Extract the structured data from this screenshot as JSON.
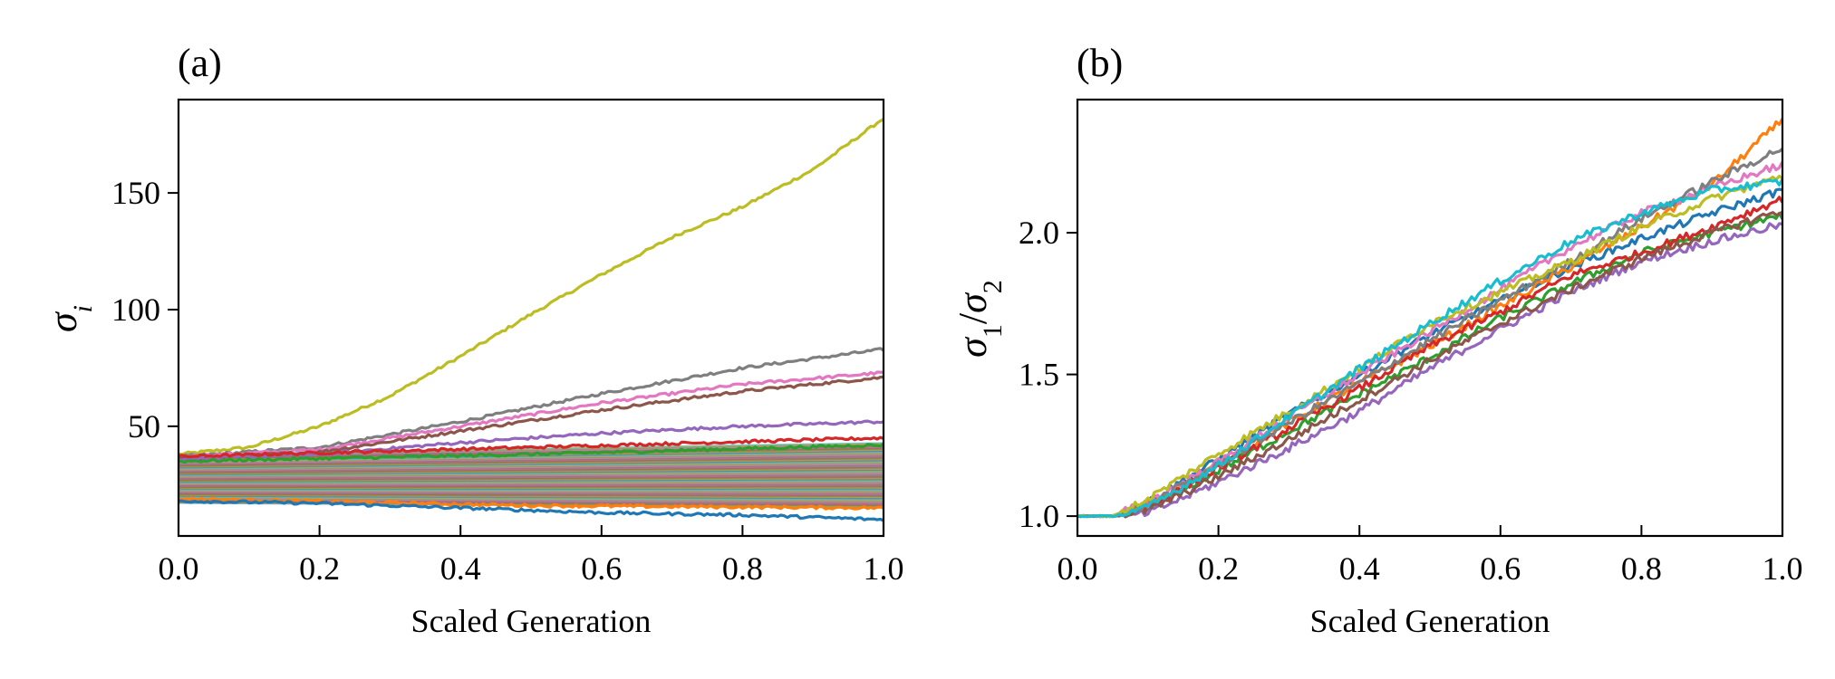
{
  "chart_data": [
    {
      "type": "line",
      "panel_label": "(a)",
      "xlabel": "Scaled Generation",
      "ylabel": {
        "symbol": "σ",
        "subscript": "i"
      },
      "xlim": [
        0.0,
        1.0
      ],
      "ylim": [
        3,
        190
      ],
      "x_ticks": [
        0.0,
        0.2,
        0.4,
        0.6,
        0.8,
        1.0
      ],
      "x_tick_labels": [
        "0.0",
        "0.2",
        "0.4",
        "0.6",
        "0.8",
        "1.0"
      ],
      "y_ticks": [
        50,
        100,
        150
      ],
      "y_tick_labels": [
        "50",
        "100",
        "150"
      ],
      "grid": false,
      "band": {
        "description": "many overlapping series",
        "color": "#9a8f80",
        "y_start": [
          17,
          38
        ],
        "y_end": [
          15,
          43
        ]
      },
      "series": [
        {
          "name": "s1",
          "color": "#bcbd22",
          "x": [
            0.0,
            0.1,
            0.2,
            0.3,
            0.4,
            0.5,
            0.6,
            0.7,
            0.8,
            0.9,
            1.0
          ],
          "values": [
            38,
            41,
            50,
            63,
            80,
            98,
            115,
            131,
            144,
            160,
            182
          ]
        },
        {
          "name": "s2",
          "color": "#7f7f7f",
          "x": [
            0.0,
            0.2,
            0.4,
            0.6,
            0.8,
            1.0
          ],
          "values": [
            37,
            41,
            52,
            64,
            75,
            83
          ]
        },
        {
          "name": "s3",
          "color": "#e377c2",
          "x": [
            0.0,
            0.2,
            0.4,
            0.6,
            0.8,
            1.0
          ],
          "values": [
            37,
            40,
            50,
            60,
            68,
            73
          ]
        },
        {
          "name": "s4",
          "color": "#8c564b",
          "x": [
            0.0,
            0.2,
            0.4,
            0.6,
            0.8,
            1.0
          ],
          "values": [
            36,
            39,
            48,
            57,
            65,
            71
          ]
        },
        {
          "name": "s5",
          "color": "#9467bd",
          "x": [
            0.0,
            0.2,
            0.4,
            0.6,
            0.8,
            1.0
          ],
          "values": [
            36,
            38,
            43,
            47,
            50,
            52
          ]
        },
        {
          "name": "s6",
          "color": "#d62728",
          "x": [
            0.0,
            0.5,
            1.0
          ],
          "values": [
            37,
            41,
            45
          ]
        },
        {
          "name": "s7",
          "color": "#2ca02c",
          "x": [
            0.0,
            0.5,
            1.0
          ],
          "values": [
            35,
            38,
            42
          ]
        },
        {
          "name": "s8",
          "color": "#ff7f0e",
          "x": [
            0.0,
            0.5,
            1.0
          ],
          "values": [
            19,
            16,
            15
          ]
        },
        {
          "name": "s9",
          "color": "#1f77b4",
          "x": [
            0.0,
            0.2,
            0.4,
            0.6,
            0.8,
            1.0
          ],
          "values": [
            18,
            17,
            15,
            13,
            12,
            10
          ]
        }
      ]
    },
    {
      "type": "line",
      "panel_label": "(b)",
      "xlabel": "Scaled Generation",
      "ylabel": {
        "num": "σ",
        "num_sub": "1",
        "slash": "/",
        "den": "σ",
        "den_sub": "2"
      },
      "xlim": [
        0.0,
        1.0
      ],
      "ylim": [
        0.93,
        2.47
      ],
      "x_ticks": [
        0.0,
        0.2,
        0.4,
        0.6,
        0.8,
        1.0
      ],
      "x_tick_labels": [
        "0.0",
        "0.2",
        "0.4",
        "0.6",
        "0.8",
        "1.0"
      ],
      "y_ticks": [
        1.0,
        1.5,
        2.0
      ],
      "y_tick_labels": [
        "1.0",
        "1.5",
        "2.0"
      ],
      "grid": false,
      "series": [
        {
          "name": "r1",
          "color": "#1f77b4",
          "x": [
            0.0,
            0.05,
            0.1,
            0.2,
            0.3,
            0.4,
            0.5,
            0.6,
            0.7,
            0.8,
            0.9,
            1.0
          ],
          "values": [
            1.0,
            1.0,
            1.05,
            1.2,
            1.36,
            1.5,
            1.64,
            1.76,
            1.88,
            1.98,
            2.07,
            2.15
          ]
        },
        {
          "name": "r2",
          "color": "#ff7f0e",
          "x": [
            0.0,
            0.05,
            0.1,
            0.2,
            0.3,
            0.4,
            0.5,
            0.6,
            0.7,
            0.8,
            0.9,
            1.0
          ],
          "values": [
            1.0,
            1.0,
            1.04,
            1.18,
            1.33,
            1.47,
            1.6,
            1.74,
            1.88,
            2.02,
            2.17,
            2.4
          ]
        },
        {
          "name": "r3",
          "color": "#2ca02c",
          "x": [
            0.0,
            0.05,
            0.1,
            0.2,
            0.3,
            0.4,
            0.5,
            0.6,
            0.7,
            0.8,
            0.9,
            1.0
          ],
          "values": [
            1.0,
            1.0,
            1.03,
            1.16,
            1.3,
            1.43,
            1.56,
            1.7,
            1.82,
            1.93,
            2.0,
            2.06
          ]
        },
        {
          "name": "r4",
          "color": "#d62728",
          "x": [
            0.0,
            0.05,
            0.1,
            0.2,
            0.3,
            0.4,
            0.5,
            0.6,
            0.7,
            0.8,
            0.9,
            1.0
          ],
          "values": [
            1.0,
            1.0,
            1.03,
            1.17,
            1.31,
            1.45,
            1.6,
            1.72,
            1.85,
            1.93,
            2.02,
            2.12
          ]
        },
        {
          "name": "r5",
          "color": "#9467bd",
          "x": [
            0.0,
            0.05,
            0.1,
            0.2,
            0.3,
            0.4,
            0.5,
            0.6,
            0.7,
            0.8,
            0.9,
            1.0
          ],
          "values": [
            1.0,
            1.0,
            1.01,
            1.12,
            1.24,
            1.37,
            1.52,
            1.66,
            1.79,
            1.9,
            1.97,
            2.03
          ]
        },
        {
          "name": "r6",
          "color": "#8c564b",
          "x": [
            0.0,
            0.05,
            0.1,
            0.2,
            0.3,
            0.4,
            0.5,
            0.6,
            0.7,
            0.8,
            0.9,
            1.0
          ],
          "values": [
            1.0,
            1.0,
            1.02,
            1.14,
            1.27,
            1.41,
            1.55,
            1.68,
            1.8,
            1.91,
            2.0,
            2.08
          ]
        },
        {
          "name": "r7",
          "color": "#e377c2",
          "x": [
            0.0,
            0.05,
            0.1,
            0.2,
            0.3,
            0.4,
            0.5,
            0.6,
            0.7,
            0.8,
            0.9,
            1.0
          ],
          "values": [
            1.0,
            1.0,
            1.05,
            1.19,
            1.35,
            1.5,
            1.65,
            1.8,
            1.95,
            2.07,
            2.16,
            2.24
          ]
        },
        {
          "name": "r8",
          "color": "#7f7f7f",
          "x": [
            0.0,
            0.05,
            0.1,
            0.2,
            0.3,
            0.4,
            0.5,
            0.6,
            0.7,
            0.8,
            0.9,
            1.0
          ],
          "values": [
            1.0,
            1.0,
            1.04,
            1.18,
            1.33,
            1.47,
            1.62,
            1.76,
            1.9,
            2.05,
            2.18,
            2.3
          ]
        },
        {
          "name": "r9",
          "color": "#bcbd22",
          "x": [
            0.0,
            0.05,
            0.1,
            0.2,
            0.3,
            0.4,
            0.5,
            0.6,
            0.7,
            0.8,
            0.9,
            1.0
          ],
          "values": [
            1.0,
            1.0,
            1.06,
            1.22,
            1.37,
            1.52,
            1.68,
            1.79,
            1.9,
            2.02,
            2.12,
            2.2
          ]
        },
        {
          "name": "r10",
          "color": "#17becf",
          "x": [
            0.0,
            0.05,
            0.1,
            0.2,
            0.3,
            0.4,
            0.5,
            0.6,
            0.7,
            0.8,
            0.9,
            1.0
          ],
          "values": [
            1.0,
            1.0,
            1.03,
            1.18,
            1.35,
            1.52,
            1.68,
            1.83,
            1.97,
            2.07,
            2.15,
            2.18
          ]
        }
      ]
    }
  ]
}
